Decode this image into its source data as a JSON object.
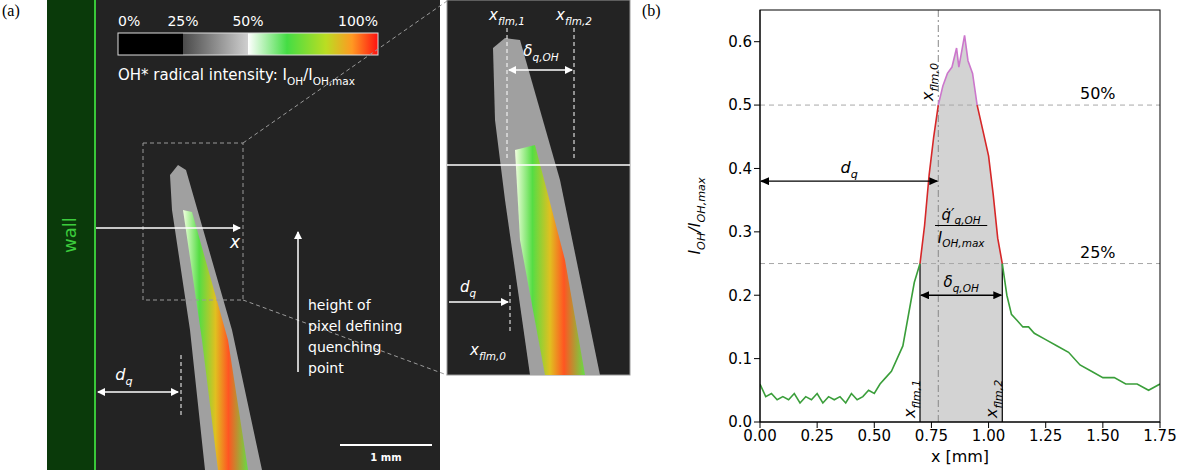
{
  "panel_a": {
    "letter": "(a)",
    "colorbar": {
      "title": [
        [
          "OH* radical intensity: I",
          "OH"
        ],
        [
          "/I",
          "OH,max"
        ]
      ],
      "range": [
        0,
        100
      ],
      "ticks": [
        {
          "value": 0,
          "label": "0%"
        },
        {
          "value": 25,
          "label": "25%"
        },
        {
          "value": 50,
          "label": "50%"
        },
        {
          "value": 100,
          "label": "100%"
        }
      ]
    },
    "wall": "wall",
    "axis_label": "x",
    "d_q": [
      [
        "d",
        "q"
      ]
    ],
    "note": "height of pixel defining quenching point",
    "scale_bar": "1 mm",
    "inset": {
      "x_flm_1": [
        [
          "x",
          "flm,1"
        ]
      ],
      "x_flm_2": [
        [
          "x",
          "flm,2"
        ]
      ],
      "delta": [
        [
          "δ",
          "q,OH"
        ]
      ],
      "d_q": [
        [
          "d",
          "q"
        ]
      ],
      "x_flm_0": [
        [
          "x",
          "flm,0"
        ]
      ]
    }
  },
  "chart_data": {
    "letter": "(b)",
    "type": "line",
    "grid": false,
    "x_label": "x [mm]",
    "y_label": [
      [
        "I",
        "OH"
      ],
      [
        "/I",
        "OH,max"
      ]
    ],
    "xlim": [
      0,
      1.75
    ],
    "ylim": [
      0,
      0.65
    ],
    "xticks": [
      {
        "value": 0,
        "label": "0.00"
      },
      0.25,
      {
        "value": 0.5,
        "label": "0.50"
      },
      0.75,
      {
        "value": 1,
        "label": "1.00"
      },
      1.25,
      {
        "value": 1.5,
        "label": "1.50"
      },
      1.75
    ],
    "yticks": [
      {
        "value": 0,
        "label": "0.0"
      },
      0.1,
      0.2,
      0.3,
      0.4,
      0.5,
      0.6
    ],
    "x": [
      0,
      0.025,
      0.05,
      0.075,
      0.1,
      0.125,
      0.15,
      0.175,
      0.2,
      0.225,
      0.25,
      0.275,
      0.3,
      0.325,
      0.35,
      0.375,
      0.4,
      0.425,
      0.45,
      0.475,
      0.5,
      0.525,
      0.55,
      0.575,
      0.6,
      0.625,
      0.65,
      0.675,
      0.7,
      0.72,
      0.74,
      0.76,
      0.78,
      0.8,
      0.82,
      0.84,
      0.86,
      0.87,
      0.88,
      0.895,
      0.91,
      0.93,
      0.95,
      0.975,
      1.0,
      1.02,
      1.04,
      1.06,
      1.08,
      1.1,
      1.125,
      1.15,
      1.175,
      1.2,
      1.25,
      1.3,
      1.35,
      1.4,
      1.45,
      1.5,
      1.55,
      1.6,
      1.65,
      1.7,
      1.75
    ],
    "series": [
      {
        "color": "#3a9e3a",
        "values": [
          0.06,
          0.04,
          0.045,
          0.035,
          0.04,
          0.035,
          0.045,
          0.03,
          0.04,
          0.035,
          0.045,
          0.03,
          0.04,
          0.035,
          0.04,
          0.03,
          0.045,
          0.035,
          0.04,
          0.05,
          0.045,
          0.06,
          0.07,
          0.08,
          0.1,
          0.12,
          0.17,
          0.22,
          0.25,
          null,
          null,
          null,
          null,
          null,
          null,
          null,
          null,
          null,
          null,
          null,
          null,
          null,
          null,
          null,
          null,
          null,
          null,
          0.25,
          0.2,
          0.17,
          0.16,
          0.15,
          0.15,
          0.14,
          0.13,
          0.12,
          0.11,
          0.09,
          0.08,
          0.07,
          0.07,
          0.06,
          0.06,
          0.05,
          0.06
        ]
      },
      {
        "color": "#d62728",
        "values": [
          null,
          null,
          null,
          null,
          null,
          null,
          null,
          null,
          null,
          null,
          null,
          null,
          null,
          null,
          null,
          null,
          null,
          null,
          null,
          null,
          null,
          null,
          null,
          null,
          null,
          null,
          null,
          null,
          0.25,
          0.31,
          0.39,
          0.45,
          0.5,
          null,
          null,
          null,
          null,
          null,
          null,
          null,
          null,
          null,
          0.5,
          0.46,
          0.42,
          0.36,
          0.29,
          0.25,
          null,
          null,
          null,
          null,
          null,
          null,
          null,
          null,
          null,
          null,
          null,
          null,
          null,
          null,
          null,
          null,
          null
        ]
      },
      {
        "color": "#cc77cc",
        "values": [
          null,
          null,
          null,
          null,
          null,
          null,
          null,
          null,
          null,
          null,
          null,
          null,
          null,
          null,
          null,
          null,
          null,
          null,
          null,
          null,
          null,
          null,
          null,
          null,
          null,
          null,
          null,
          null,
          null,
          null,
          null,
          null,
          0.5,
          0.53,
          0.55,
          0.56,
          0.59,
          0.56,
          0.58,
          0.61,
          0.57,
          0.55,
          0.5,
          null,
          null,
          null,
          null,
          null,
          null,
          null,
          null,
          null,
          null,
          null,
          null,
          null,
          null,
          null,
          null,
          null,
          null,
          null,
          null,
          null,
          null
        ]
      }
    ],
    "annotations": {
      "levels": [
        {
          "value": 0.5,
          "label": "50%"
        },
        {
          "value": 0.25,
          "label": "25%"
        }
      ],
      "x_flm_0": {
        "value": 0.78,
        "label": [
          [
            "x",
            "flm,0"
          ]
        ]
      },
      "x_flm_1": {
        "value": 0.7,
        "label": [
          [
            "x",
            "flm,1"
          ]
        ]
      },
      "x_flm_2": {
        "value": 1.06,
        "label": [
          [
            "x",
            "flm,2"
          ]
        ]
      },
      "d_q": {
        "label": [
          [
            "d",
            "q"
          ]
        ],
        "y": 0.38
      },
      "delta": {
        "label": [
          [
            "δ",
            "q,OH"
          ]
        ],
        "y": 0.2
      },
      "fraction": {
        "numerator": [
          [
            "q̇′",
            "q,OH"
          ]
        ],
        "denominator": [
          [
            "I",
            "OH,max"
          ]
        ],
        "y": 0.31
      }
    }
  }
}
